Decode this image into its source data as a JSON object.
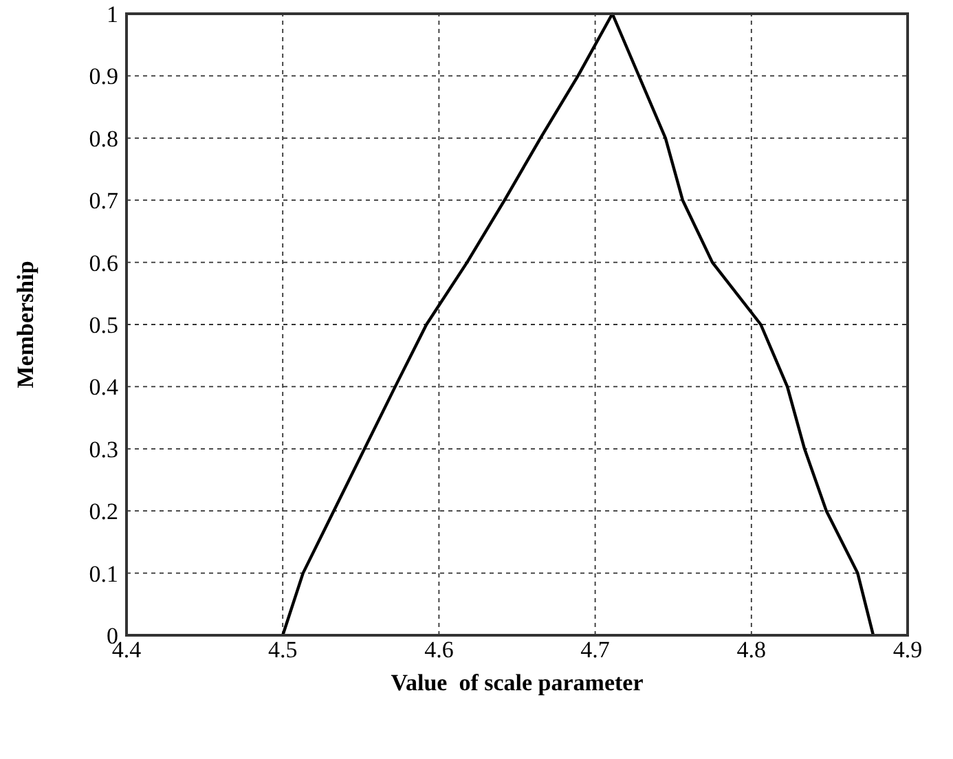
{
  "chart_data": {
    "type": "line",
    "xlabel": "Value  of scale parameter",
    "ylabel": "Membership",
    "x": [
      4.5,
      4.513,
      4.572,
      4.592,
      4.618,
      4.642,
      4.665,
      4.689,
      4.711,
      4.745,
      4.756,
      4.775,
      4.806,
      4.823,
      4.834,
      4.848,
      4.868,
      4.878
    ],
    "series": [
      {
        "color": "#000000",
        "values": [
          0,
          0.1,
          0.4,
          0.5,
          0.6,
          0.7,
          0.8,
          0.9,
          1,
          0.8,
          0.7,
          0.6,
          0.5,
          0.4,
          0.3,
          0.2,
          0.1,
          0
        ]
      }
    ],
    "xlim": [
      4.4,
      4.9
    ],
    "xticks": [
      4.4,
      4.5,
      4.6,
      4.7,
      4.8,
      4.9
    ],
    "ylim": [
      0,
      1
    ],
    "yticks": [
      0,
      0.1,
      0.2,
      0.3,
      0.4,
      0.5,
      0.6,
      0.7,
      0.8,
      0.9,
      1
    ],
    "grid": true,
    "marker": "none",
    "line_style": "solid"
  }
}
